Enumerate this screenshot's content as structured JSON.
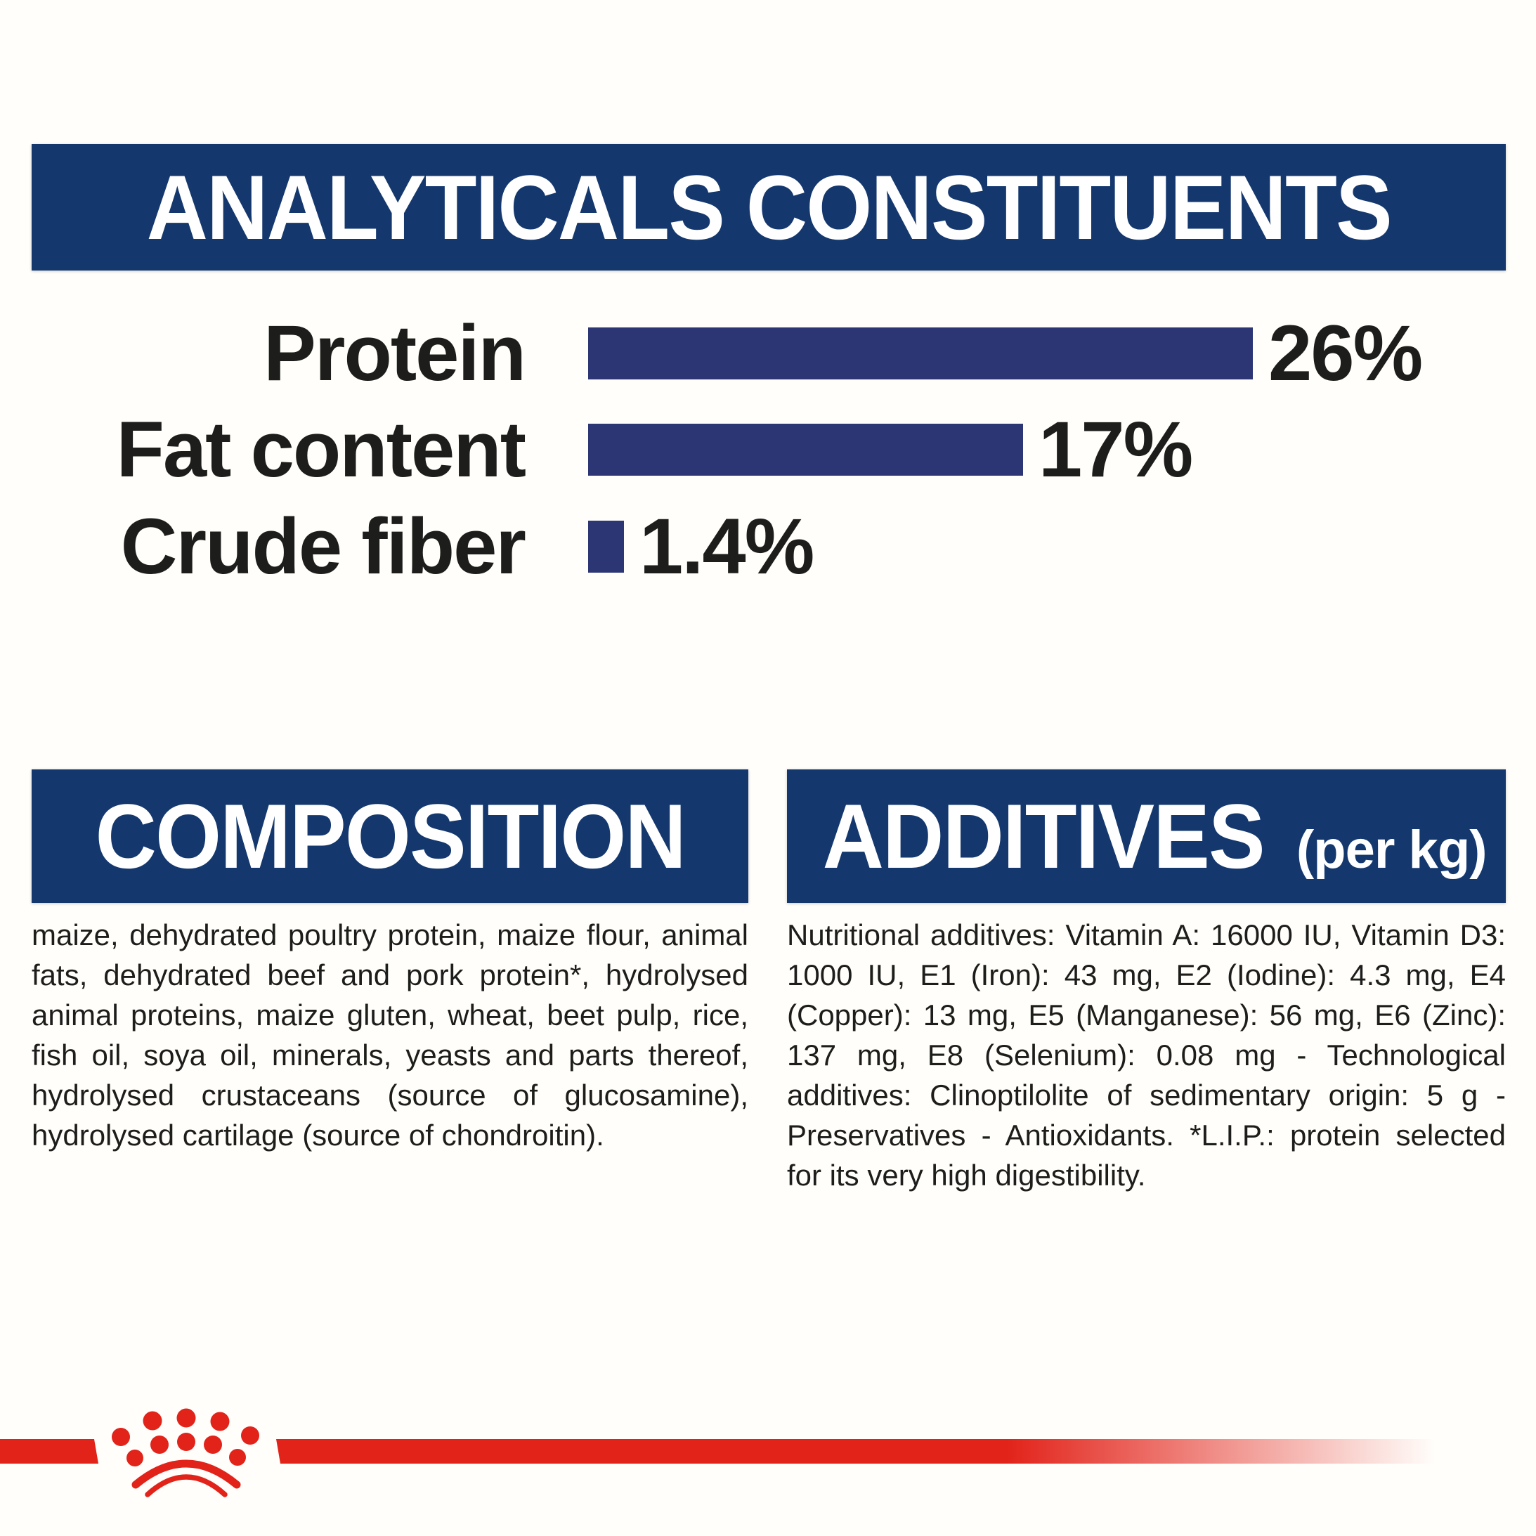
{
  "colors": {
    "background": "#fffefb",
    "header_navy": "#14386e",
    "bar_blue": "#2c3674",
    "brand_red": "#e2231a",
    "text_ink": "#1d1d1b"
  },
  "analyticals": {
    "title": "ANALYTICALS CONSTITUENTS",
    "rows": [
      {
        "label": "Protein",
        "value": 26,
        "value_label": "26%"
      },
      {
        "label": "Fat content",
        "value": 17,
        "value_label": "17%"
      },
      {
        "label": "Crude fiber",
        "value": 1.4,
        "value_label": "1.4%"
      }
    ]
  },
  "chart_data": {
    "type": "bar",
    "orientation": "horizontal",
    "title": "ANALYTICALS CONSTITUENTS",
    "categories": [
      "Protein",
      "Fat content",
      "Crude fiber"
    ],
    "values": [
      26,
      17,
      1.4
    ],
    "data_labels": [
      "26%",
      "17%",
      "1.4%"
    ],
    "unit": "%",
    "xlim": [
      0,
      30
    ],
    "grid": false,
    "axes_shown": false,
    "bar_color": "#2c3674",
    "label_position": "right-of-bar"
  },
  "composition": {
    "title": "COMPOSITION",
    "body": "maize, dehydrated poultry protein, maize flour, animal fats, dehydrated beef and pork protein*, hydrolysed animal proteins, maize gluten, wheat, beet pulp, rice, fish oil, soya oil, minerals, yeasts and parts thereof, hydrolysed crustaceans (source of glucosamine), hydrolysed cartilage (source of chondroitin)."
  },
  "additives": {
    "title": "ADDITIVES",
    "title_suffix": "(per kg)",
    "body": "Nutritional additives: Vitamin A: 16000 IU, Vitamin D3: 1000 IU, E1 (Iron): 43 mg, E2 (Iodine): 4.3 mg, E4 (Copper): 13 mg, E5 (Manganese): 56 mg, E6 (Zinc): 137 mg, E8 (Selenium): 0.08 mg - Technological additives: Clinoptilolite of sedimentary origin: 5 g - Preservatives - Antioxidants. *L.I.P.: protein selected for its very high digestibility."
  },
  "footer": {
    "logo": "royal-canin-crown"
  }
}
